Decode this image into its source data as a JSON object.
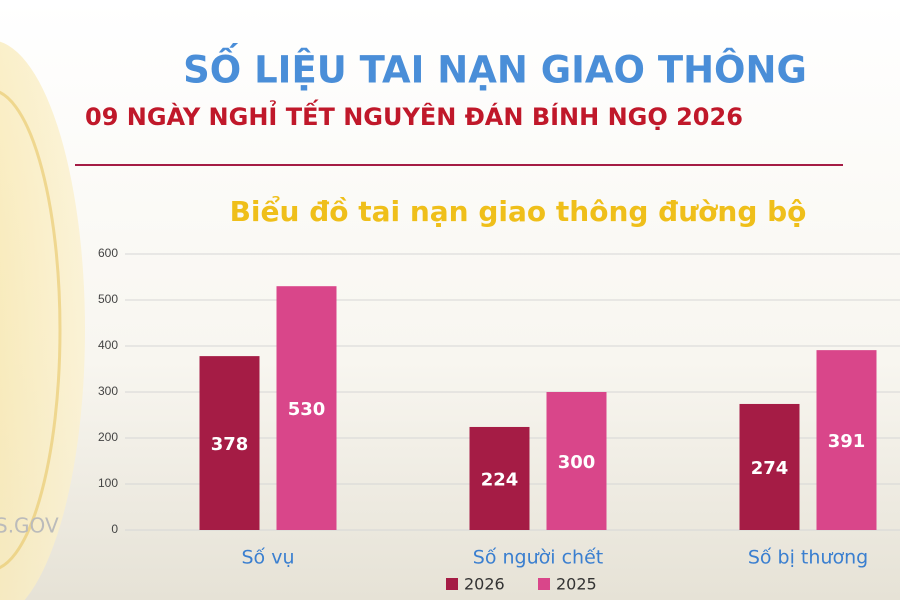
{
  "chart_data": {
    "type": "bar",
    "title": "SỐ LIỆU TAI NẠN GIAO THÔNG",
    "subtitle": "09 NGÀY NGHỈ TẾT NGUYÊN ĐÁN BÍNH NGỌ 2026",
    "chart_title": "Biểu đồ tai nạn giao thông đường bộ",
    "watermark": "S.GOV",
    "categories": [
      "Số vụ",
      "Số người chết",
      "Số bị thương"
    ],
    "series": [
      {
        "name": "2026",
        "color": "#a51c45",
        "values": [
          378,
          224,
          274
        ]
      },
      {
        "name": "2025",
        "color": "#d9468a",
        "values": [
          530,
          300,
          391
        ]
      }
    ],
    "ylim": [
      0,
      600
    ],
    "yticks": [
      0,
      100,
      200,
      300,
      400,
      500,
      600
    ],
    "grid": true
  }
}
